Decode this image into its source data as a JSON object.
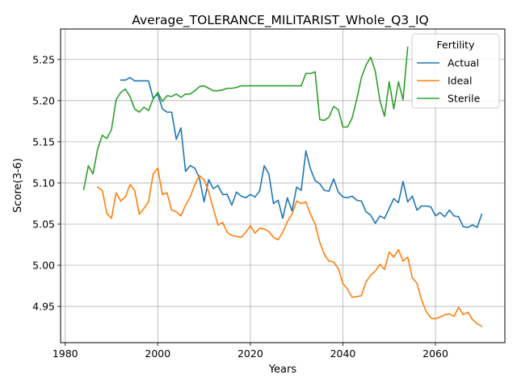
{
  "chart_data": {
    "type": "line",
    "title": "Average_TOLERANCE_MILITARIST_Whole_Q3_IQ",
    "xlabel": "Years",
    "ylabel": "Score(3-6)",
    "xlim": [
      1979,
      2075
    ],
    "ylim": [
      4.906,
      5.287
    ],
    "xticks": [
      1980,
      2000,
      2020,
      2040,
      2060
    ],
    "yticks": [
      4.95,
      5.0,
      5.05,
      5.1,
      5.15,
      5.2,
      5.25
    ],
    "xtick_labels": [
      "1980",
      "2000",
      "2020",
      "2040",
      "2060"
    ],
    "ytick_labels": [
      "4.95",
      "5.00",
      "5.05",
      "5.10",
      "5.15",
      "5.20",
      "5.25"
    ],
    "grid": true,
    "legend": {
      "title": "Fertility",
      "position": "top-right"
    },
    "series": [
      {
        "name": "Actual",
        "color": "#1f77b4",
        "x": [
          1992,
          1993,
          1994,
          1995,
          1996,
          1997,
          1998,
          1999,
          2000,
          2001,
          2002,
          2003,
          2004,
          2005,
          2006,
          2007,
          2008,
          2009,
          2010,
          2011,
          2012,
          2013,
          2014,
          2015,
          2016,
          2017,
          2018,
          2019,
          2020,
          2021,
          2022,
          2023,
          2024,
          2025,
          2026,
          2027,
          2028,
          2029,
          2030,
          2031,
          2032,
          2033,
          2034,
          2035,
          2036,
          2037,
          2038,
          2039,
          2040,
          2041,
          2042,
          2043,
          2044,
          2045,
          2046,
          2047,
          2048,
          2049,
          2050,
          2051,
          2052,
          2053,
          2054,
          2055,
          2056,
          2057,
          2058,
          2059,
          2060,
          2061,
          2062,
          2063,
          2064,
          2065,
          2066,
          2067,
          2068,
          2069,
          2070
        ],
        "y": [
          5.225,
          5.225,
          5.228,
          5.224,
          5.224,
          5.224,
          5.224,
          5.203,
          5.208,
          5.19,
          5.186,
          5.186,
          5.153,
          5.167,
          5.114,
          5.121,
          5.118,
          5.106,
          5.077,
          5.104,
          5.093,
          5.097,
          5.086,
          5.086,
          5.073,
          5.089,
          5.084,
          5.082,
          5.086,
          5.083,
          5.09,
          5.121,
          5.111,
          5.075,
          5.079,
          5.057,
          5.082,
          5.066,
          5.095,
          5.091,
          5.139,
          5.117,
          5.103,
          5.099,
          5.091,
          5.09,
          5.105,
          5.089,
          5.083,
          5.082,
          5.084,
          5.079,
          5.078,
          5.065,
          5.061,
          5.051,
          5.06,
          5.057,
          5.069,
          5.081,
          5.076,
          5.102,
          5.077,
          5.084,
          5.067,
          5.072,
          5.072,
          5.071,
          5.06,
          5.064,
          5.059,
          5.067,
          5.06,
          5.059,
          5.047,
          5.046,
          5.049,
          5.046,
          5.062
        ]
      },
      {
        "name": "Ideal",
        "color": "#ff7f0e",
        "x": [
          1987,
          1988,
          1989,
          1990,
          1991,
          1992,
          1993,
          1994,
          1995,
          1996,
          1997,
          1998,
          1999,
          2000,
          2001,
          2002,
          2003,
          2004,
          2005,
          2006,
          2007,
          2008,
          2009,
          2010,
          2011,
          2012,
          2013,
          2014,
          2015,
          2016,
          2017,
          2018,
          2019,
          2020,
          2021,
          2022,
          2023,
          2024,
          2025,
          2026,
          2027,
          2028,
          2029,
          2030,
          2031,
          2032,
          2033,
          2034,
          2035,
          2036,
          2037,
          2038,
          2039,
          2040,
          2041,
          2042,
          2043,
          2044,
          2045,
          2046,
          2047,
          2048,
          2049,
          2050,
          2051,
          2052,
          2053,
          2054,
          2055,
          2056,
          2057,
          2058,
          2059,
          2060,
          2061,
          2062,
          2063,
          2064,
          2065,
          2066,
          2067,
          2068,
          2069,
          2070
        ],
        "y": [
          5.095,
          5.091,
          5.063,
          5.057,
          5.088,
          5.078,
          5.083,
          5.098,
          5.091,
          5.062,
          5.069,
          5.077,
          5.111,
          5.118,
          5.086,
          5.088,
          5.067,
          5.065,
          5.06,
          5.073,
          5.083,
          5.098,
          5.109,
          5.104,
          5.089,
          5.069,
          5.049,
          5.052,
          5.04,
          5.036,
          5.035,
          5.034,
          5.04,
          5.048,
          5.039,
          5.045,
          5.044,
          5.041,
          5.034,
          5.031,
          5.04,
          5.053,
          5.062,
          5.078,
          5.075,
          5.077,
          5.062,
          5.05,
          5.028,
          5.013,
          5.005,
          5.004,
          4.996,
          4.978,
          4.971,
          4.961,
          4.962,
          4.963,
          4.98,
          4.988,
          4.993,
          5.001,
          4.995,
          5.016,
          5.01,
          5.019,
          5.005,
          5.01,
          4.985,
          4.978,
          4.958,
          4.944,
          4.936,
          4.935,
          4.937,
          4.94,
          4.941,
          4.938,
          4.949,
          4.94,
          4.943,
          4.934,
          4.929,
          4.926
        ]
      },
      {
        "name": "Sterile",
        "color": "#2ca02c",
        "x": [
          1984,
          1985,
          1986,
          1987,
          1988,
          1989,
          1990,
          1991,
          1992,
          1993,
          1994,
          1995,
          1996,
          1997,
          1998,
          1999,
          2000,
          2001,
          2002,
          2003,
          2004,
          2005,
          2006,
          2007,
          2008,
          2009,
          2010,
          2011,
          2012,
          2013,
          2014,
          2015,
          2016,
          2017,
          2018,
          2019,
          2020,
          2021,
          2022,
          2023,
          2024,
          2025,
          2026,
          2027,
          2028,
          2029,
          2030,
          2031,
          2032,
          2033,
          2034,
          2035,
          2036,
          2037,
          2038,
          2039,
          2040,
          2041,
          2042,
          2043,
          2044,
          2045,
          2046,
          2047,
          2048,
          2049,
          2050,
          2051,
          2052,
          2053,
          2054
        ],
        "y": [
          5.092,
          5.121,
          5.111,
          5.141,
          5.158,
          5.154,
          5.165,
          5.201,
          5.21,
          5.214,
          5.205,
          5.19,
          5.186,
          5.192,
          5.188,
          5.202,
          5.21,
          5.199,
          5.206,
          5.205,
          5.208,
          5.204,
          5.208,
          5.208,
          5.212,
          5.217,
          5.218,
          5.215,
          5.212,
          5.212,
          5.213,
          5.215,
          5.215,
          5.216,
          5.218,
          5.218,
          5.218,
          5.218,
          5.218,
          5.218,
          5.218,
          5.218,
          5.218,
          5.218,
          5.218,
          5.218,
          5.218,
          5.218,
          5.233,
          5.233,
          5.235,
          5.177,
          5.176,
          5.18,
          5.193,
          5.189,
          5.168,
          5.168,
          5.179,
          5.202,
          5.228,
          5.243,
          5.253,
          5.236,
          5.2,
          5.181,
          5.223,
          5.19,
          5.223,
          5.201,
          5.265
        ]
      }
    ]
  }
}
